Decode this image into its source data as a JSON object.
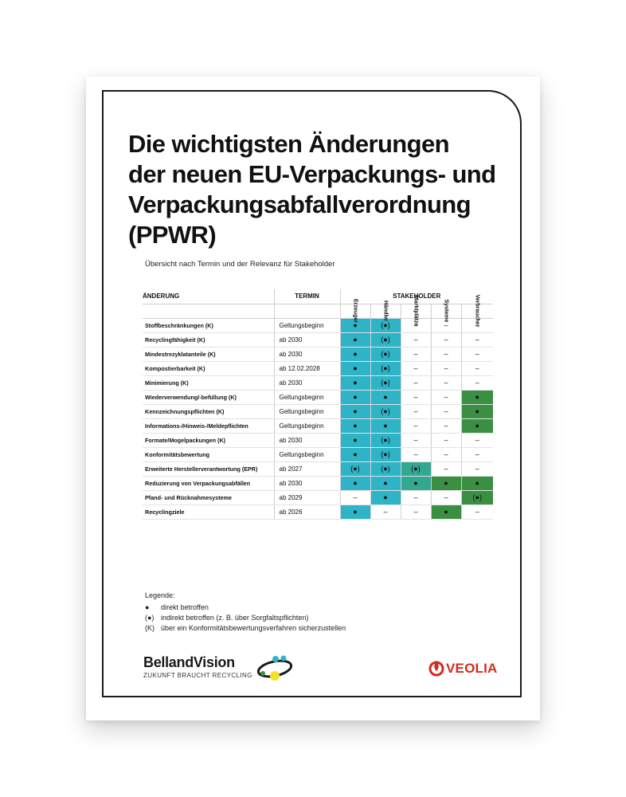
{
  "title_lines": [
    "Die wichtigsten Änderungen",
    "der neuen EU-Verpackungs- und",
    "Verpackungsabfallverordnung",
    "(PPWR)"
  ],
  "subtitle": "Übersicht nach Termin und der Relevanz für Stakeholder",
  "table": {
    "headers": {
      "change": "ÄNDERUNG",
      "termin": "TERMIN",
      "stakeholder": "STAKEHOLDER"
    },
    "stakeholders": [
      "Erzeuger",
      "Händler",
      "Marktplätze",
      "Systeme",
      "Verbraucher"
    ],
    "rows": [
      {
        "change": "Stoffbeschränkungen (K)",
        "termin": "Geltungsbeginn",
        "cells": [
          {
            "v": "●",
            "c": "blue"
          },
          {
            "v": "(●)",
            "c": "blue"
          },
          {
            "v": "–",
            "c": ""
          },
          {
            "v": "–",
            "c": ""
          },
          {
            "v": "–",
            "c": ""
          }
        ]
      },
      {
        "change": "Recyclingfähigkeit (K)",
        "termin": "ab 2030",
        "cells": [
          {
            "v": "●",
            "c": "blue"
          },
          {
            "v": "(●)",
            "c": "blue"
          },
          {
            "v": "–",
            "c": ""
          },
          {
            "v": "–",
            "c": ""
          },
          {
            "v": "–",
            "c": ""
          }
        ]
      },
      {
        "change": "Mindestrezyklatanteile (K)",
        "termin": "ab 2030",
        "cells": [
          {
            "v": "●",
            "c": "blue"
          },
          {
            "v": "(●)",
            "c": "blue"
          },
          {
            "v": "–",
            "c": ""
          },
          {
            "v": "–",
            "c": ""
          },
          {
            "v": "–",
            "c": ""
          }
        ]
      },
      {
        "change": "Kompostierbarkeit (K)",
        "termin": "ab 12.02.2028",
        "cells": [
          {
            "v": "●",
            "c": "blue"
          },
          {
            "v": "(●)",
            "c": "blue"
          },
          {
            "v": "–",
            "c": ""
          },
          {
            "v": "–",
            "c": ""
          },
          {
            "v": "–",
            "c": ""
          }
        ]
      },
      {
        "change": "Minimierung (K)",
        "termin": "ab 2030",
        "cells": [
          {
            "v": "●",
            "c": "blue"
          },
          {
            "v": "(●)",
            "c": "blue"
          },
          {
            "v": "–",
            "c": ""
          },
          {
            "v": "–",
            "c": ""
          },
          {
            "v": "–",
            "c": ""
          }
        ]
      },
      {
        "change": "Wiederverwendung/-befüllung (K)",
        "termin": "Geltungsbeginn",
        "cells": [
          {
            "v": "●",
            "c": "blue"
          },
          {
            "v": "●",
            "c": "blue"
          },
          {
            "v": "–",
            "c": ""
          },
          {
            "v": "–",
            "c": ""
          },
          {
            "v": "●",
            "c": "green"
          }
        ]
      },
      {
        "change": "Kennzeichnungspflichten (K)",
        "termin": "Geltungsbeginn",
        "cells": [
          {
            "v": "●",
            "c": "blue"
          },
          {
            "v": "(●)",
            "c": "blue"
          },
          {
            "v": "–",
            "c": ""
          },
          {
            "v": "–",
            "c": ""
          },
          {
            "v": "●",
            "c": "green"
          }
        ]
      },
      {
        "change": "Informations-/Hinweis-/Meldepflichten",
        "termin": "Geltungsbeginn",
        "cells": [
          {
            "v": "●",
            "c": "blue"
          },
          {
            "v": "●",
            "c": "blue"
          },
          {
            "v": "–",
            "c": ""
          },
          {
            "v": "–",
            "c": ""
          },
          {
            "v": "●",
            "c": "green"
          }
        ]
      },
      {
        "change": "Formate/Mogelpackungen (K)",
        "termin": "ab 2030",
        "cells": [
          {
            "v": "●",
            "c": "blue"
          },
          {
            "v": "(●)",
            "c": "blue"
          },
          {
            "v": "–",
            "c": ""
          },
          {
            "v": "–",
            "c": ""
          },
          {
            "v": "–",
            "c": ""
          }
        ]
      },
      {
        "change": "Konformitätsbewertung",
        "termin": "Geltungsbeginn",
        "cells": [
          {
            "v": "●",
            "c": "blue"
          },
          {
            "v": "(●)",
            "c": "blue"
          },
          {
            "v": "–",
            "c": ""
          },
          {
            "v": "–",
            "c": ""
          },
          {
            "v": "–",
            "c": ""
          }
        ]
      },
      {
        "change": "Erweiterte Herstellerverantwortung (EPR)",
        "termin": "ab 2027",
        "cells": [
          {
            "v": "(●)",
            "c": "blue"
          },
          {
            "v": "(●)",
            "c": "blue"
          },
          {
            "v": "(●)",
            "c": "teal"
          },
          {
            "v": "–",
            "c": ""
          },
          {
            "v": "–",
            "c": ""
          }
        ]
      },
      {
        "change": "Reduzierung von Verpackungsabfällen",
        "termin": "ab 2030",
        "cells": [
          {
            "v": "●",
            "c": "blue"
          },
          {
            "v": "●",
            "c": "blue"
          },
          {
            "v": "●",
            "c": "teal"
          },
          {
            "v": "●",
            "c": "green"
          },
          {
            "v": "●",
            "c": "green"
          }
        ]
      },
      {
        "change": "Pfand- und Rücknahmesysteme",
        "termin": "ab 2029",
        "cells": [
          {
            "v": "–",
            "c": ""
          },
          {
            "v": "●",
            "c": "blue"
          },
          {
            "v": "–",
            "c": ""
          },
          {
            "v": "–",
            "c": ""
          },
          {
            "v": "(●)",
            "c": "green"
          }
        ]
      },
      {
        "change": "Recyclingziele",
        "termin": "ab 2026",
        "cells": [
          {
            "v": "●",
            "c": "blue"
          },
          {
            "v": "–",
            "c": ""
          },
          {
            "v": "–",
            "c": ""
          },
          {
            "v": "●",
            "c": "green"
          },
          {
            "v": "–",
            "c": ""
          }
        ]
      }
    ]
  },
  "legend": {
    "title": "Legende:",
    "items": [
      {
        "symbol": "●",
        "text": "direkt betroffen"
      },
      {
        "symbol": "(●)",
        "text": "indirekt betroffen (z. B. über Sorgfaltspflichten)"
      },
      {
        "symbol": "(K)",
        "text": "über ein Konformitätsbewertungsverfahren sicherzustellen"
      }
    ]
  },
  "footer": {
    "bellandvision_name": "BellandVision",
    "bellandvision_tagline": "ZUKUNFT BRAUCHT RECYCLING",
    "veolia_name": "VEOLIA"
  },
  "colors": {
    "blue": "#2fb3c6",
    "teal": "#32a890",
    "green": "#3a8f42",
    "veolia_red": "#d52b1e"
  }
}
